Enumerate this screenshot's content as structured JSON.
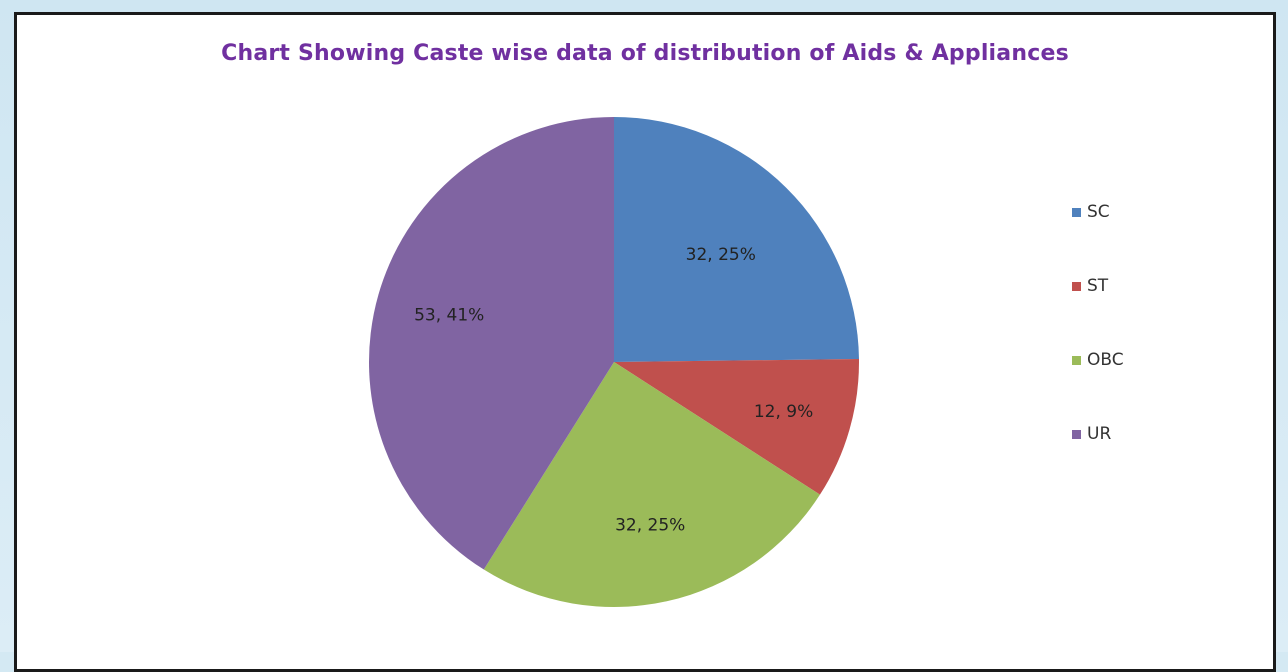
{
  "chart_data": {
    "type": "pie",
    "title": "Chart Showing Caste wise data of distribution of Aids & Appliances",
    "slices": [
      {
        "name": "SC",
        "value": 32,
        "percent": 25,
        "label": "32, 25%",
        "color": "#4f81bd"
      },
      {
        "name": "ST",
        "value": 12,
        "percent": 9,
        "label": "12, 9%",
        "color": "#c0504d"
      },
      {
        "name": "OBC",
        "value": 32,
        "percent": 25,
        "label": "32, 25%",
        "color": "#9bbb59"
      },
      {
        "name": "UR",
        "value": 53,
        "percent": 41,
        "label": "53, 41%",
        "color": "#8064a2"
      }
    ],
    "start_angle_deg": 0,
    "direction": "clockwise",
    "legend_position": "right"
  }
}
